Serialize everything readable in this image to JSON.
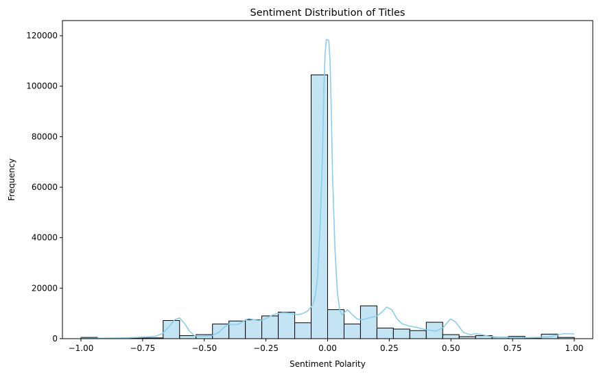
{
  "chart_data": {
    "type": "bar",
    "title": "Sentiment Distribution of Titles",
    "xlabel": "Sentiment Polarity",
    "ylabel": "Frequency",
    "xlim": [
      -1.075,
      1.075
    ],
    "ylim": [
      0,
      126000
    ],
    "xticks": [
      -1.0,
      -0.75,
      -0.5,
      -0.25,
      0.0,
      0.25,
      0.5,
      0.75,
      1.0
    ],
    "xtick_labels": [
      "−1.00",
      "−0.75",
      "−0.50",
      "−0.25",
      "0.00",
      "0.25",
      "0.50",
      "0.75",
      "1.00"
    ],
    "yticks": [
      0,
      20000,
      40000,
      60000,
      80000,
      100000,
      120000
    ],
    "ytick_labels": [
      "0",
      "20000",
      "40000",
      "60000",
      "80000",
      "100000",
      "120000"
    ],
    "bin_edges": [
      -1.0,
      -0.9333,
      -0.8667,
      -0.8,
      -0.7333,
      -0.6667,
      -0.6,
      -0.5333,
      -0.4667,
      -0.4,
      -0.3333,
      -0.2667,
      -0.2,
      -0.1333,
      -0.0667,
      0.0,
      0.0667,
      0.1333,
      0.2,
      0.2667,
      0.3333,
      0.4,
      0.4667,
      0.5333,
      0.6,
      0.6667,
      0.7333,
      0.8,
      0.8667,
      0.9333,
      1.0
    ],
    "values": [
      500,
      100,
      150,
      250,
      300,
      7200,
      1200,
      1600,
      5800,
      7000,
      7500,
      9000,
      10500,
      6300,
      104500,
      11500,
      5800,
      13000,
      4200,
      3800,
      3200,
      6500,
      1600,
      800,
      1200,
      600,
      900,
      100,
      1800,
      500
    ],
    "kde": {
      "x": [
        -1.0,
        -0.95,
        -0.9,
        -0.85,
        -0.8,
        -0.75,
        -0.7,
        -0.67,
        -0.64,
        -0.62,
        -0.6,
        -0.58,
        -0.56,
        -0.54,
        -0.52,
        -0.5,
        -0.47,
        -0.44,
        -0.42,
        -0.4,
        -0.38,
        -0.36,
        -0.34,
        -0.32,
        -0.3,
        -0.28,
        -0.26,
        -0.24,
        -0.22,
        -0.2,
        -0.18,
        -0.16,
        -0.14,
        -0.12,
        -0.1,
        -0.08,
        -0.06,
        -0.05,
        -0.04,
        -0.03,
        -0.02,
        -0.015,
        -0.01,
        -0.005,
        0.0,
        0.005,
        0.01,
        0.015,
        0.02,
        0.03,
        0.04,
        0.05,
        0.06,
        0.07,
        0.08,
        0.1,
        0.12,
        0.14,
        0.16,
        0.18,
        0.2,
        0.22,
        0.24,
        0.26,
        0.28,
        0.3,
        0.33,
        0.36,
        0.4,
        0.44,
        0.47,
        0.49,
        0.5,
        0.52,
        0.55,
        0.58,
        0.6,
        0.63,
        0.66,
        0.7,
        0.75,
        0.8,
        0.85,
        0.9,
        0.93,
        0.96,
        1.0
      ],
      "y": [
        200,
        150,
        200,
        250,
        400,
        600,
        900,
        2000,
        5000,
        7500,
        8200,
        6000,
        3000,
        1200,
        900,
        1000,
        1200,
        2500,
        4500,
        5800,
        5500,
        5800,
        7000,
        8000,
        7500,
        7200,
        7500,
        8500,
        9500,
        10000,
        10300,
        10200,
        9800,
        9500,
        10000,
        11000,
        13500,
        17000,
        25000,
        45000,
        75000,
        100000,
        113000,
        118500,
        118500,
        118000,
        110000,
        90000,
        65000,
        35000,
        18000,
        11000,
        9500,
        10500,
        11500,
        9500,
        7800,
        7500,
        8000,
        8500,
        9000,
        10500,
        12500,
        11500,
        8000,
        6000,
        5000,
        4500,
        3500,
        3000,
        4500,
        7000,
        7800,
        6500,
        2500,
        1500,
        2000,
        1500,
        800,
        600,
        500,
        400,
        500,
        700,
        1500,
        2000,
        1900
      ]
    },
    "colors": {
      "bar_fill": "#c3e4f2",
      "bar_edge": "#000000",
      "kde_line": "#87ceeb"
    },
    "grid": false,
    "legend": "none"
  }
}
